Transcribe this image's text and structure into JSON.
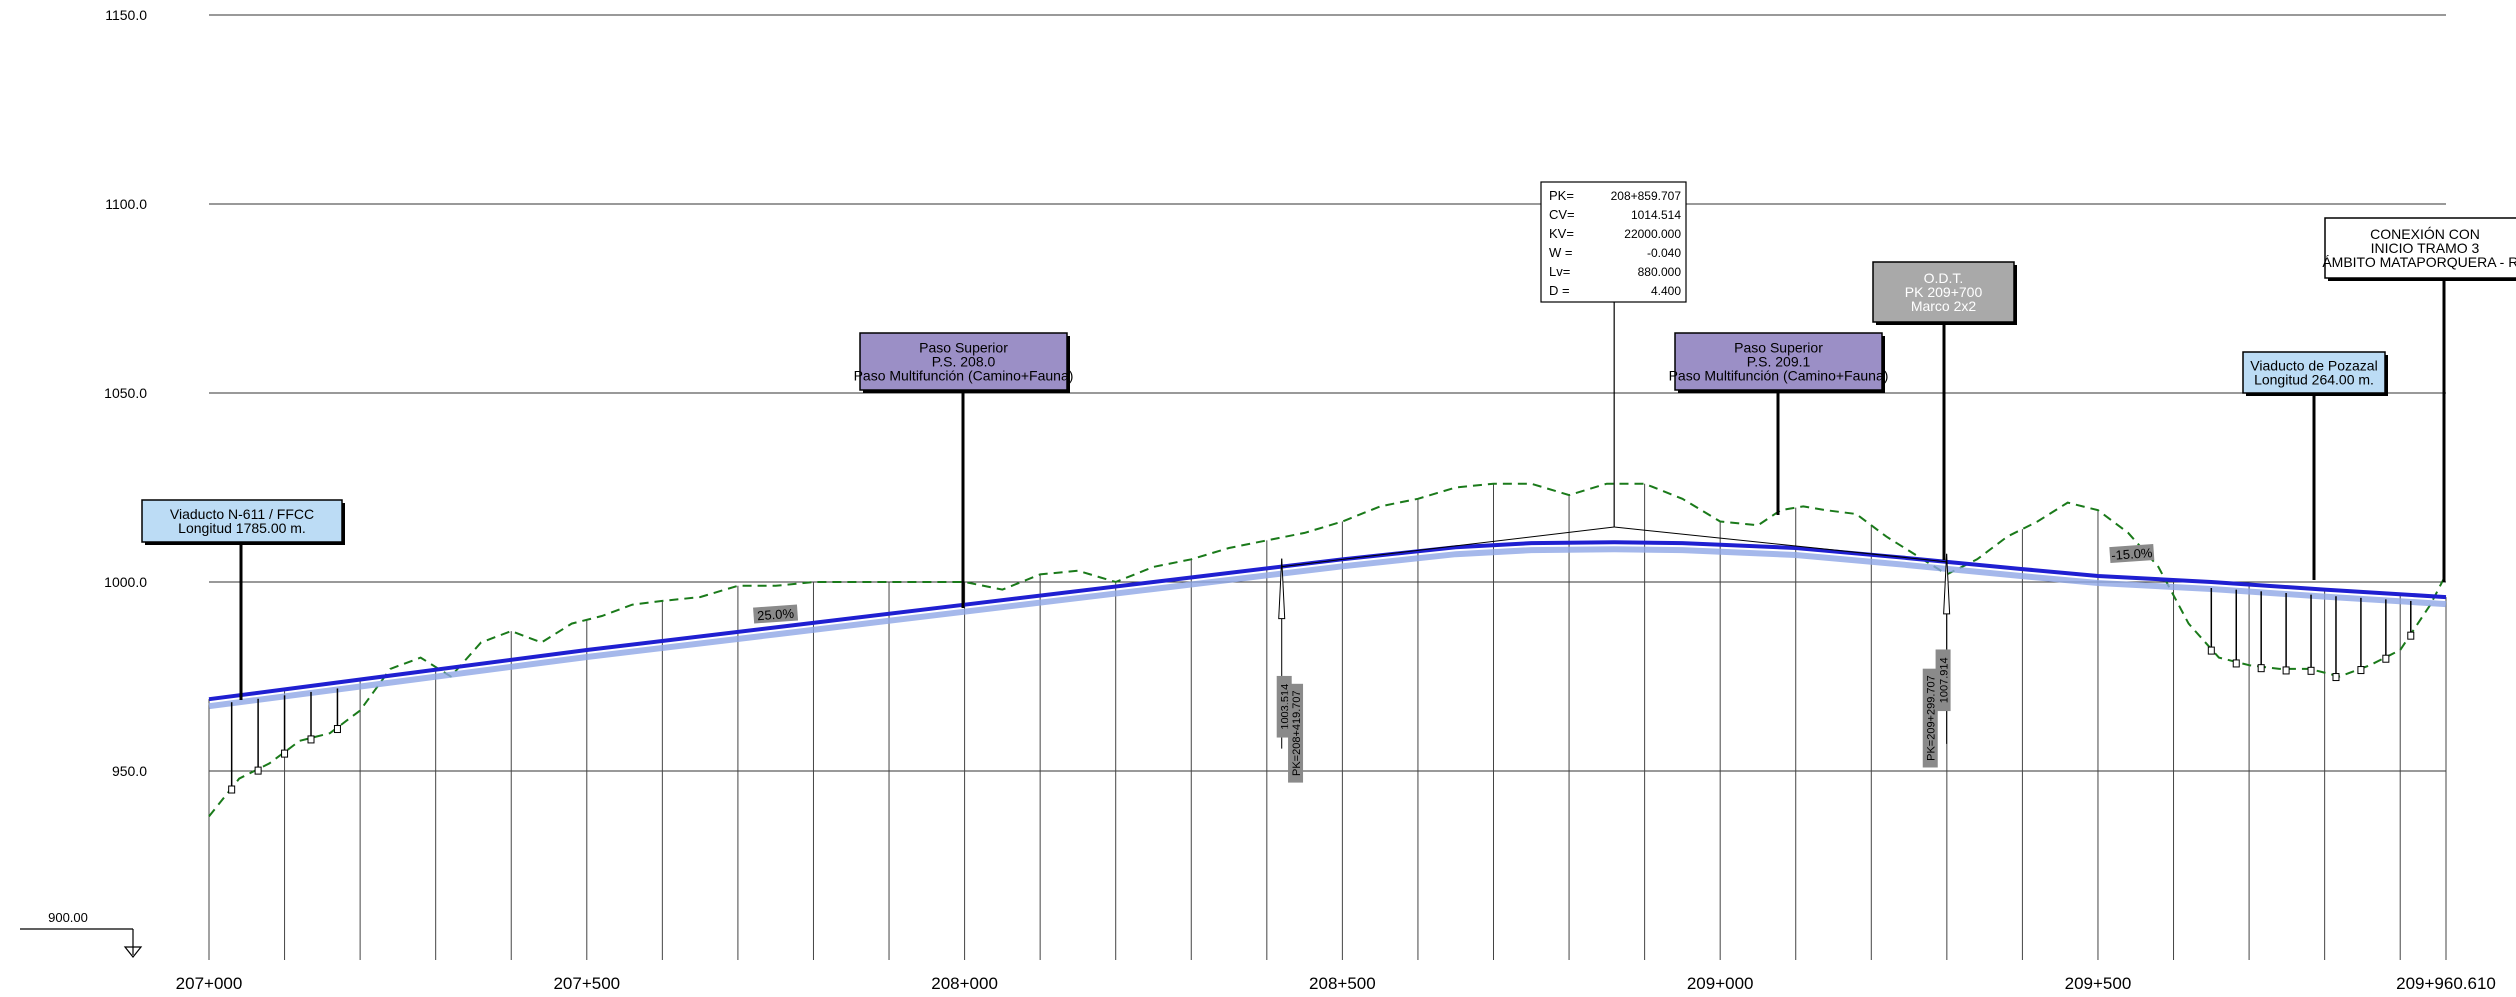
{
  "chart_data": {
    "type": "line",
    "y_ticks": [
      "1150.0",
      "1100.0",
      "1050.0",
      "1000.0",
      "950.0"
    ],
    "y_tick_values": [
      1150,
      1100,
      1050,
      1000,
      950
    ],
    "datum_label": "900.00",
    "datum_value": 900,
    "x_tick_labels": [
      "207+000",
      "207+500",
      "208+000",
      "208+500",
      "209+000",
      "209+500",
      "209+960.610"
    ],
    "x_tick_values": [
      207000,
      207500,
      208000,
      208500,
      209000,
      209500,
      209960.61
    ],
    "xlim": [
      207000,
      209960.61
    ],
    "ylim": [
      900,
      1155
    ],
    "grid": true,
    "series": [
      {
        "role": "rasante",
        "color": "#1f1fd1",
        "x": [
          207000,
          207250,
          207500,
          207750,
          208000,
          208250,
          208500,
          208650,
          208750,
          208860,
          208950,
          209100,
          209250,
          209400,
          209500,
          209650,
          209800,
          209960.61
        ],
        "y": [
          969.0,
          975.5,
          982.0,
          988.0,
          994.0,
          1000.0,
          1006.0,
          1009.2,
          1010.3,
          1010.5,
          1010.3,
          1009.0,
          1006.3,
          1003.4,
          1001.6,
          1000.0,
          998.0,
          996.0
        ]
      },
      {
        "role": "terreno",
        "color": "#1a7a1a",
        "x": [
          207000,
          207040,
          207080,
          207120,
          207160,
          207200,
          207240,
          207280,
          207320,
          207360,
          207400,
          207440,
          207480,
          207520,
          207560,
          207600,
          207650,
          207700,
          207750,
          207800,
          207850,
          207900,
          207950,
          208000,
          208050,
          208100,
          208150,
          208200,
          208250,
          208300,
          208350,
          208400,
          208450,
          208500,
          208550,
          208600,
          208650,
          208700,
          208750,
          208800,
          208850,
          208900,
          208950,
          209000,
          209050,
          209080,
          209110,
          209140,
          209180,
          209220,
          209260,
          209300,
          209340,
          209380,
          209420,
          209460,
          209500,
          209540,
          209580,
          209620,
          209660,
          209700,
          209740,
          209780,
          209820,
          209860,
          209900,
          209940,
          209960.61
        ],
        "y": [
          938,
          948,
          952,
          958,
          960,
          966,
          977,
          980,
          975,
          984,
          987,
          984,
          989,
          991,
          994,
          995,
          996,
          999,
          999,
          1000,
          1000,
          1000,
          1000,
          1000,
          998,
          1002,
          1003,
          1000,
          1004,
          1006,
          1009,
          1011,
          1013,
          1016,
          1020,
          1022,
          1025,
          1026,
          1026,
          1023,
          1026,
          1026,
          1022,
          1016,
          1015,
          1019,
          1020,
          1019,
          1018,
          1012,
          1007,
          1002,
          1006,
          1012,
          1016,
          1021,
          1019,
          1013,
          1004,
          989,
          980,
          978,
          977,
          977,
          975,
          978,
          982,
          994,
          1002
        ]
      }
    ],
    "station_interval": 100,
    "grade_labels": [
      {
        "text": "25.0%",
        "x": 207750,
        "y": 991
      },
      {
        "text": "-15.0%",
        "x": 209545,
        "y": 1007
      }
    ],
    "vertical_labels": [
      {
        "text": "1003.514",
        "x": 208425,
        "y": 967
      },
      {
        "text": "PK=208+419.707",
        "x": 208440,
        "y": 960
      },
      {
        "text": "PK=209+299.707",
        "x": 209280,
        "y": 964
      },
      {
        "text": "1007.914",
        "x": 209297,
        "y": 974
      }
    ],
    "curve_params": {
      "x": 208859.707,
      "rows": [
        {
          "key": "PK=",
          "value": "208+859.707"
        },
        {
          "key": "CV=",
          "value": "1014.514"
        },
        {
          "key": "KV=",
          "value": "22000.000"
        },
        {
          "key": "W =",
          "value": "-0.040"
        },
        {
          "key": "Lv=",
          "value": "880.000"
        },
        {
          "key": "D =",
          "value": "4.400"
        }
      ]
    },
    "structures": [
      {
        "lines": [
          "Viaducto N-611 / FFCC",
          "Longitud 1785.00 m."
        ],
        "fill": "#bcdcf5",
        "x": 207040
      },
      {
        "lines": [
          "Paso Superior",
          "P.S. 208.0",
          "Paso Multifunción (Camino+Fauna)"
        ],
        "fill": "#9b8fc6",
        "x": 208000
      },
      {
        "lines": [
          "Paso Superior",
          "P.S. 209.1",
          "Paso Multifunción (Camino+Fauna)"
        ],
        "fill": "#9b8fc6",
        "x": 209080
      },
      {
        "lines": [
          "O.D.T.",
          "PK 209+700",
          "Marco 2x2"
        ],
        "fill": "#a9a9a9",
        "x": 209300
      },
      {
        "lines": [
          "Viaducto de Pozazal",
          "Longitud 264.00 m."
        ],
        "fill": "#bcdcf5",
        "x": 209785
      },
      {
        "lines": [
          "CONEXIÓN CON",
          "INICIO TRAMO 3",
          "ÁMBITO MATAPORQUERA - RE"
        ],
        "fill": "#ffffff",
        "x": 209960.61
      }
    ]
  }
}
